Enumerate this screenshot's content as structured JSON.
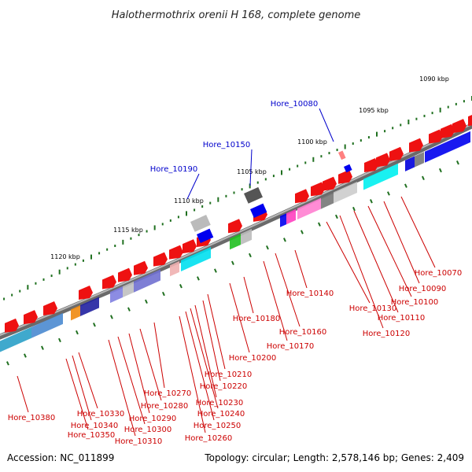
{
  "title": "Halothermothrix orenii H 168, complete genome",
  "footer": {
    "accession": "Accession: NC_011899",
    "summary": "Topology: circular; Length: 2,578,146 bp; Genes: 2,409"
  },
  "colors": {
    "backbone": "#808080",
    "tick": "#207020",
    "red_label": "#cc0000",
    "blue_label": "#0000cc",
    "forward_gene": "#ff0000",
    "reverse_gene": "#0000ff"
  },
  "kbp_ticks": [
    "1090 kbp",
    "1095 kbp",
    "1100 kbp",
    "1105 kbp",
    "1110 kbp",
    "1115 kbp",
    "1120 kbp"
  ],
  "blue_labels": [
    "Hore_10080",
    "Hore_10150",
    "Hore_10190"
  ],
  "red_labels": [
    "Hore_10070",
    "Hore_10090",
    "Hore_10100",
    "Hore_10110",
    "Hore_10120",
    "Hore_10130",
    "Hore_10140",
    "Hore_10160",
    "Hore_10170",
    "Hore_10180",
    "Hore_10200",
    "Hore_10210",
    "Hore_10220",
    "Hore_10230",
    "Hore_10240",
    "Hore_10250",
    "Hore_10260",
    "Hore_10270",
    "Hore_10280",
    "Hore_10290",
    "Hore_10300",
    "Hore_10310",
    "Hore_10330",
    "Hore_10340",
    "Hore_10350",
    "Hore_10380"
  ]
}
